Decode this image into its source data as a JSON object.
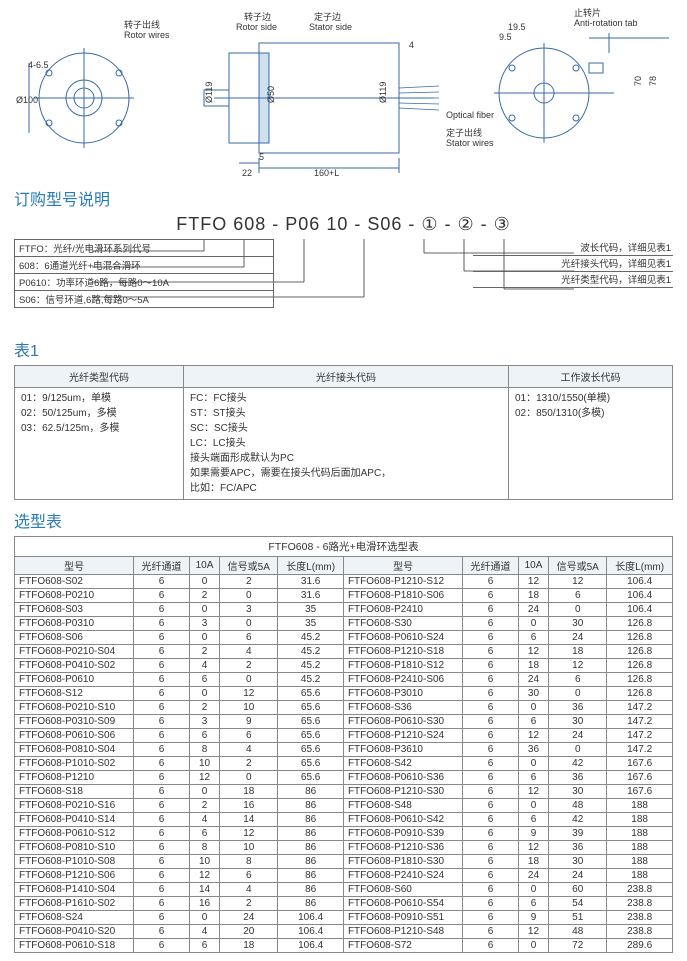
{
  "diagram": {
    "labels": {
      "rotor_wires_cn": "转子出线",
      "rotor_wires_en": "Rotor wires",
      "rotor_side_cn": "转子边",
      "rotor_side_en": "Rotor side",
      "stator_side_cn": "定子边",
      "stator_side_en": "Stator side",
      "anti_rotation_cn": "止转片",
      "anti_rotation_en": "Anti-rotation tab",
      "optical_fiber": "Optical fiber",
      "stator_wires_cn": "定子出线",
      "stator_wires_en": "Stator wires",
      "dim_4_6_5": "4-6.5",
      "dim_phi100": "Ø100",
      "dim_phi119_1": "Ø119",
      "dim_phi50": "Ø50",
      "dim_phi119_2": "Ø119",
      "dim_4": "4",
      "dim_5": "5",
      "dim_22": "22",
      "dim_160L": "160+L",
      "dim_19_5": "19.5",
      "dim_9_5": "9.5",
      "dim_70": "70",
      "dim_78": "78"
    },
    "colors": {
      "line": "#3a6aa8",
      "text": "#333"
    }
  },
  "order_title": "订购型号说明",
  "part_number": {
    "p1": "FTFO",
    "p2": "608",
    "p3": "P06",
    "p4": "10",
    "p5": "S06",
    "p6": "①",
    "p7": "②",
    "p8": "③",
    "display": "FTFO 608 - P06 10 - S06 - ① - ② - ③"
  },
  "legend_left": [
    "FTFO：光纤/光电滑环系列代号",
    "608：6通道光纤+电混合滑环",
    "P0610：功率环道6路，每路0～10A",
    "S06：信号环道,6路,每路0～5A"
  ],
  "legend_right": [
    "波长代码，详细见表1",
    "光纤接头代码，详细见表1",
    "光纤类型代码，详细见表1"
  ],
  "table1_title": "表1",
  "table1": {
    "headers": [
      "光纤类型代码",
      "光纤接头代码",
      "工作波长代码"
    ],
    "col1": [
      "01：9/125um，单模",
      "02：50/125um，多模",
      "03：62.5/125m，多模"
    ],
    "col2": [
      "FC：FC接头",
      "ST：ST接头",
      "SC：SC接头",
      "LC：LC接头",
      "接头端面形成默认为PC",
      "如果需要APC，需要在接头代码后面加APC，",
      "比如：FC/APC"
    ],
    "col3": [
      "01：1310/1550(单模)",
      "02：850/1310(多模)"
    ]
  },
  "sel_title": "选型表",
  "sel_header": "FTFO608 - 6路光+电滑环选型表",
  "sel_cols": [
    "型号",
    "光纤通道",
    "10A",
    "信号或5A",
    "长度L(mm)"
  ],
  "sel_left": [
    [
      "FTFO608-S02",
      "6",
      "0",
      "2",
      "31.6"
    ],
    [
      "FTFO608-P0210",
      "6",
      "2",
      "0",
      "31.6"
    ],
    [
      "FTFO608-S03",
      "6",
      "0",
      "3",
      "35"
    ],
    [
      "FTFO608-P0310",
      "6",
      "3",
      "0",
      "35"
    ],
    [
      "FTFO608-S06",
      "6",
      "0",
      "6",
      "45.2"
    ],
    [
      "FTFO608-P0210-S04",
      "6",
      "2",
      "4",
      "45.2"
    ],
    [
      "FTFO608-P0410-S02",
      "6",
      "4",
      "2",
      "45.2"
    ],
    [
      "FTFO608-P0610",
      "6",
      "6",
      "0",
      "45.2"
    ],
    [
      "FTFO608-S12",
      "6",
      "0",
      "12",
      "65.6"
    ],
    [
      "FTFO608-P0210-S10",
      "6",
      "2",
      "10",
      "65.6"
    ],
    [
      "FTFO608-P0310-S09",
      "6",
      "3",
      "9",
      "65.6"
    ],
    [
      "FTFO608-P0610-S06",
      "6",
      "6",
      "6",
      "65.6"
    ],
    [
      "FTFO608-P0810-S04",
      "6",
      "8",
      "4",
      "65.6"
    ],
    [
      "FTFO608-P1010-S02",
      "6",
      "10",
      "2",
      "65.6"
    ],
    [
      "FTFO608-P1210",
      "6",
      "12",
      "0",
      "65.6"
    ],
    [
      "FTFO608-S18",
      "6",
      "0",
      "18",
      "86"
    ],
    [
      "FTFO608-P0210-S16",
      "6",
      "2",
      "16",
      "86"
    ],
    [
      "FTFO608-P0410-S14",
      "6",
      "4",
      "14",
      "86"
    ],
    [
      "FTFO608-P0610-S12",
      "6",
      "6",
      "12",
      "86"
    ],
    [
      "FTFO608-P0810-S10",
      "6",
      "8",
      "10",
      "86"
    ],
    [
      "FTFO608-P1010-S08",
      "6",
      "10",
      "8",
      "86"
    ],
    [
      "FTFO608-P1210-S06",
      "6",
      "12",
      "6",
      "86"
    ],
    [
      "FTFO608-P1410-S04",
      "6",
      "14",
      "4",
      "86"
    ],
    [
      "FTFO608-P1610-S02",
      "6",
      "16",
      "2",
      "86"
    ],
    [
      "FTFO608-S24",
      "6",
      "0",
      "24",
      "106.4"
    ],
    [
      "FTFO608-P0410-S20",
      "6",
      "4",
      "20",
      "106.4"
    ],
    [
      "FTFO608-P0610-S18",
      "6",
      "6",
      "18",
      "106.4"
    ]
  ],
  "sel_right": [
    [
      "FTFO608-P1210-S12",
      "6",
      "12",
      "12",
      "106.4"
    ],
    [
      "FTFO608-P1810-S06",
      "6",
      "18",
      "6",
      "106.4"
    ],
    [
      "FTFO608-P2410",
      "6",
      "24",
      "0",
      "106.4"
    ],
    [
      "FTFO608-S30",
      "6",
      "0",
      "30",
      "126.8"
    ],
    [
      "FTFO608-P0610-S24",
      "6",
      "6",
      "24",
      "126.8"
    ],
    [
      "FTFO608-P1210-S18",
      "6",
      "12",
      "18",
      "126.8"
    ],
    [
      "FTFO608-P1810-S12",
      "6",
      "18",
      "12",
      "126.8"
    ],
    [
      "FTFO608-P2410-S06",
      "6",
      "24",
      "6",
      "126.8"
    ],
    [
      "FTFO608-P3010",
      "6",
      "30",
      "0",
      "126.8"
    ],
    [
      "FTFO608-S36",
      "6",
      "0",
      "36",
      "147.2"
    ],
    [
      "FTFO608-P0610-S30",
      "6",
      "6",
      "30",
      "147.2"
    ],
    [
      "FTFO608-P1210-S24",
      "6",
      "12",
      "24",
      "147.2"
    ],
    [
      "FTFO608-P3610",
      "6",
      "36",
      "0",
      "147.2"
    ],
    [
      "FTFO608-S42",
      "6",
      "0",
      "42",
      "167.6"
    ],
    [
      "FTFO608-P0610-S36",
      "6",
      "6",
      "36",
      "167.6"
    ],
    [
      "FTFO608-P1210-S30",
      "6",
      "12",
      "30",
      "167.6"
    ],
    [
      "FTFO608-S48",
      "6",
      "0",
      "48",
      "188"
    ],
    [
      "FTFO608-P0610-S42",
      "6",
      "6",
      "42",
      "188"
    ],
    [
      "FTFO608-P0910-S39",
      "6",
      "9",
      "39",
      "188"
    ],
    [
      "FTFO608-P1210-S36",
      "6",
      "12",
      "36",
      "188"
    ],
    [
      "FTFO608-P1810-S30",
      "6",
      "18",
      "30",
      "188"
    ],
    [
      "FTFO608-P2410-S24",
      "6",
      "24",
      "24",
      "188"
    ],
    [
      "FTFO608-S60",
      "6",
      "0",
      "60",
      "238.8"
    ],
    [
      "FTFO608-P0610-S54",
      "6",
      "6",
      "54",
      "238.8"
    ],
    [
      "FTFO608-P0910-S51",
      "6",
      "9",
      "51",
      "238.8"
    ],
    [
      "FTFO608-P1210-S48",
      "6",
      "12",
      "48",
      "238.8"
    ],
    [
      "FTFO608-S72",
      "6",
      "0",
      "72",
      "289.6"
    ]
  ]
}
